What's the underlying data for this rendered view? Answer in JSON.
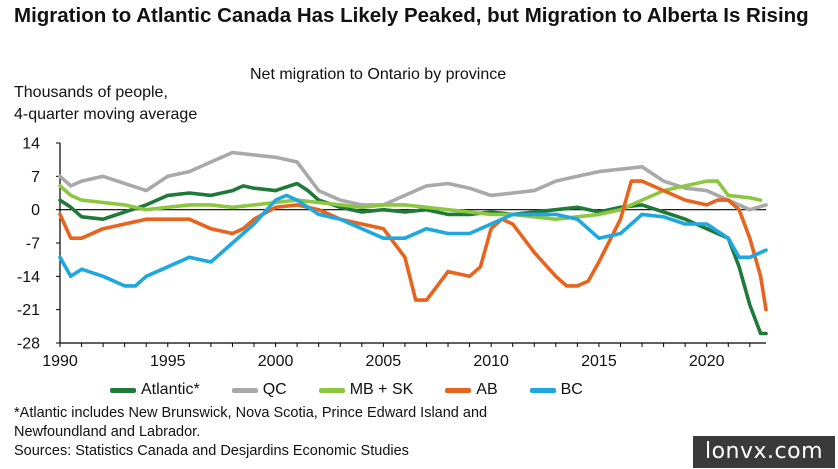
{
  "title": "Migration to Atlantic Canada Has Likely Peaked, but Migration to Alberta Is Rising",
  "subtitle": "Net migration to Ontario by province",
  "ylabel_line1": "Thousands of people,",
  "ylabel_line2": "4-quarter moving average",
  "footnote_line1": "*Atlantic includes New Brunswick, Nova Scotia, Prince Edward Island and",
  "footnote_line2": "Newfoundland and Labrador.",
  "sources": "Sources: Statistics Canada and Desjardins Economic Studies",
  "watermark": "lonvx.com",
  "chart_data": {
    "type": "line",
    "xlim": [
      1990,
      2022.75
    ],
    "ylim": [
      -28,
      14
    ],
    "x_ticks": [
      1990,
      1995,
      2000,
      2005,
      2010,
      2015,
      2020
    ],
    "y_ticks": [
      14,
      7,
      0,
      -7,
      -14,
      -21,
      -28
    ],
    "y_tick_labels": [
      "14",
      "7",
      "0",
      "-7",
      "-14",
      "-21",
      "-28"
    ],
    "grid": false,
    "legend_position": "bottom",
    "series": [
      {
        "name": "Atlantic*",
        "color": "#1f7a3a",
        "points": [
          [
            1990,
            2
          ],
          [
            1990.5,
            0.5
          ],
          [
            1991,
            -1.5
          ],
          [
            1992,
            -2
          ],
          [
            1993,
            -0.5
          ],
          [
            1994,
            1
          ],
          [
            1995,
            3
          ],
          [
            1996,
            3.5
          ],
          [
            1997,
            3
          ],
          [
            1998,
            4
          ],
          [
            1998.5,
            5
          ],
          [
            1999,
            4.5
          ],
          [
            2000,
            4
          ],
          [
            2001,
            5.5
          ],
          [
            2001.5,
            4
          ],
          [
            2002,
            2
          ],
          [
            2003,
            0.5
          ],
          [
            2004,
            -0.5
          ],
          [
            2005,
            0
          ],
          [
            2006,
            -0.5
          ],
          [
            2007,
            0
          ],
          [
            2008,
            -1
          ],
          [
            2009,
            -1
          ],
          [
            2010,
            -0.5
          ],
          [
            2011,
            -1
          ],
          [
            2012,
            -0.5
          ],
          [
            2013,
            0
          ],
          [
            2014,
            0.5
          ],
          [
            2015,
            -0.5
          ],
          [
            2016,
            0.5
          ],
          [
            2017,
            1
          ],
          [
            2018,
            -0.5
          ],
          [
            2019,
            -2
          ],
          [
            2019.5,
            -3
          ],
          [
            2020,
            -4
          ],
          [
            2020.5,
            -5
          ],
          [
            2021,
            -6
          ],
          [
            2021.5,
            -12
          ],
          [
            2022,
            -20
          ],
          [
            2022.5,
            -26
          ],
          [
            2022.75,
            -26
          ]
        ]
      },
      {
        "name": "QC",
        "color": "#a9a9a9",
        "points": [
          [
            1990,
            7
          ],
          [
            1990.5,
            5
          ],
          [
            1991,
            6
          ],
          [
            1992,
            7
          ],
          [
            1993,
            5.5
          ],
          [
            1994,
            4
          ],
          [
            1995,
            7
          ],
          [
            1996,
            8
          ],
          [
            1997,
            10
          ],
          [
            1998,
            12
          ],
          [
            1999,
            11.5
          ],
          [
            2000,
            11
          ],
          [
            2001,
            10
          ],
          [
            2001.5,
            7
          ],
          [
            2002,
            4
          ],
          [
            2003,
            2
          ],
          [
            2004,
            1
          ],
          [
            2005,
            1
          ],
          [
            2006,
            3
          ],
          [
            2007,
            5
          ],
          [
            2008,
            5.5
          ],
          [
            2009,
            4.5
          ],
          [
            2010,
            3
          ],
          [
            2011,
            3.5
          ],
          [
            2012,
            4
          ],
          [
            2013,
            6
          ],
          [
            2014,
            7
          ],
          [
            2015,
            8
          ],
          [
            2016,
            8.5
          ],
          [
            2017,
            9
          ],
          [
            2018,
            6
          ],
          [
            2019,
            4.5
          ],
          [
            2020,
            4
          ],
          [
            2020.5,
            3
          ],
          [
            2021,
            2
          ],
          [
            2022,
            0
          ],
          [
            2022.75,
            1
          ]
        ]
      },
      {
        "name": "MB + SK",
        "color": "#8dc63f",
        "points": [
          [
            1990,
            5
          ],
          [
            1990.5,
            3
          ],
          [
            1991,
            2
          ],
          [
            1992,
            1.5
          ],
          [
            1993,
            1
          ],
          [
            1994,
            0
          ],
          [
            1995,
            0.5
          ],
          [
            1996,
            1
          ],
          [
            1997,
            1
          ],
          [
            1998,
            0.5
          ],
          [
            1999,
            1
          ],
          [
            2000,
            1.5
          ],
          [
            2001,
            2
          ],
          [
            2002,
            1.5
          ],
          [
            2003,
            1
          ],
          [
            2004,
            0.5
          ],
          [
            2005,
            1
          ],
          [
            2006,
            1
          ],
          [
            2007,
            0.5
          ],
          [
            2008,
            0
          ],
          [
            2009,
            -0.5
          ],
          [
            2010,
            -1
          ],
          [
            2011,
            -1
          ],
          [
            2012,
            -1.5
          ],
          [
            2013,
            -2
          ],
          [
            2014,
            -1.5
          ],
          [
            2015,
            -1
          ],
          [
            2016,
            0
          ],
          [
            2017,
            2
          ],
          [
            2018,
            4
          ],
          [
            2019,
            5
          ],
          [
            2019.5,
            5.5
          ],
          [
            2020,
            6
          ],
          [
            2020.5,
            6
          ],
          [
            2021,
            3
          ],
          [
            2022,
            2.5
          ],
          [
            2022.5,
            2
          ]
        ]
      },
      {
        "name": "AB",
        "color": "#e8641e",
        "points": [
          [
            1990,
            -1
          ],
          [
            1990.5,
            -6
          ],
          [
            1991,
            -6
          ],
          [
            1992,
            -4
          ],
          [
            1993,
            -3
          ],
          [
            1994,
            -2
          ],
          [
            1995,
            -2
          ],
          [
            1996,
            -2
          ],
          [
            1997,
            -4
          ],
          [
            1998,
            -5
          ],
          [
            1998.5,
            -4
          ],
          [
            1999,
            -2
          ],
          [
            2000,
            0.5
          ],
          [
            2001,
            1
          ],
          [
            2002,
            0
          ],
          [
            2003,
            -2
          ],
          [
            2004,
            -3
          ],
          [
            2005,
            -4
          ],
          [
            2006,
            -10
          ],
          [
            2006.5,
            -19
          ],
          [
            2007,
            -19
          ],
          [
            2007.5,
            -16
          ],
          [
            2008,
            -13
          ],
          [
            2009,
            -14
          ],
          [
            2009.5,
            -12
          ],
          [
            2010,
            -4
          ],
          [
            2010.5,
            -2
          ],
          [
            2011,
            -3
          ],
          [
            2011.5,
            -6
          ],
          [
            2012,
            -9
          ],
          [
            2013,
            -14
          ],
          [
            2013.5,
            -16
          ],
          [
            2014,
            -16
          ],
          [
            2014.5,
            -15
          ],
          [
            2015,
            -11
          ],
          [
            2016,
            -2
          ],
          [
            2016.5,
            6
          ],
          [
            2017,
            6
          ],
          [
            2017.5,
            5
          ],
          [
            2018,
            4
          ],
          [
            2019,
            2
          ],
          [
            2020,
            1
          ],
          [
            2020.5,
            2
          ],
          [
            2021,
            2
          ],
          [
            2021.5,
            0
          ],
          [
            2022,
            -6
          ],
          [
            2022.5,
            -14
          ],
          [
            2022.75,
            -21
          ]
        ]
      },
      {
        "name": "BC",
        "color": "#1fa7e0",
        "points": [
          [
            1990,
            -10
          ],
          [
            1990.5,
            -14
          ],
          [
            1991,
            -12.5
          ],
          [
            1992,
            -14
          ],
          [
            1993,
            -16
          ],
          [
            1993.5,
            -16
          ],
          [
            1994,
            -14
          ],
          [
            1995,
            -12
          ],
          [
            1996,
            -10
          ],
          [
            1997,
            -11
          ],
          [
            1998,
            -7
          ],
          [
            1999,
            -3
          ],
          [
            2000,
            2
          ],
          [
            2000.5,
            3
          ],
          [
            2001,
            2
          ],
          [
            2002,
            -1
          ],
          [
            2003,
            -2
          ],
          [
            2004,
            -4
          ],
          [
            2005,
            -6
          ],
          [
            2006,
            -6
          ],
          [
            2007,
            -4
          ],
          [
            2008,
            -5
          ],
          [
            2009,
            -5
          ],
          [
            2010,
            -3
          ],
          [
            2011,
            -1
          ],
          [
            2012,
            -1
          ],
          [
            2013,
            -1
          ],
          [
            2014,
            -2
          ],
          [
            2015,
            -6
          ],
          [
            2016,
            -5
          ],
          [
            2016.5,
            -3
          ],
          [
            2017,
            -1
          ],
          [
            2018,
            -1.5
          ],
          [
            2019,
            -3
          ],
          [
            2020,
            -3
          ],
          [
            2021,
            -6
          ],
          [
            2021.5,
            -10
          ],
          [
            2022,
            -10
          ],
          [
            2022.75,
            -8.5
          ]
        ]
      }
    ]
  }
}
